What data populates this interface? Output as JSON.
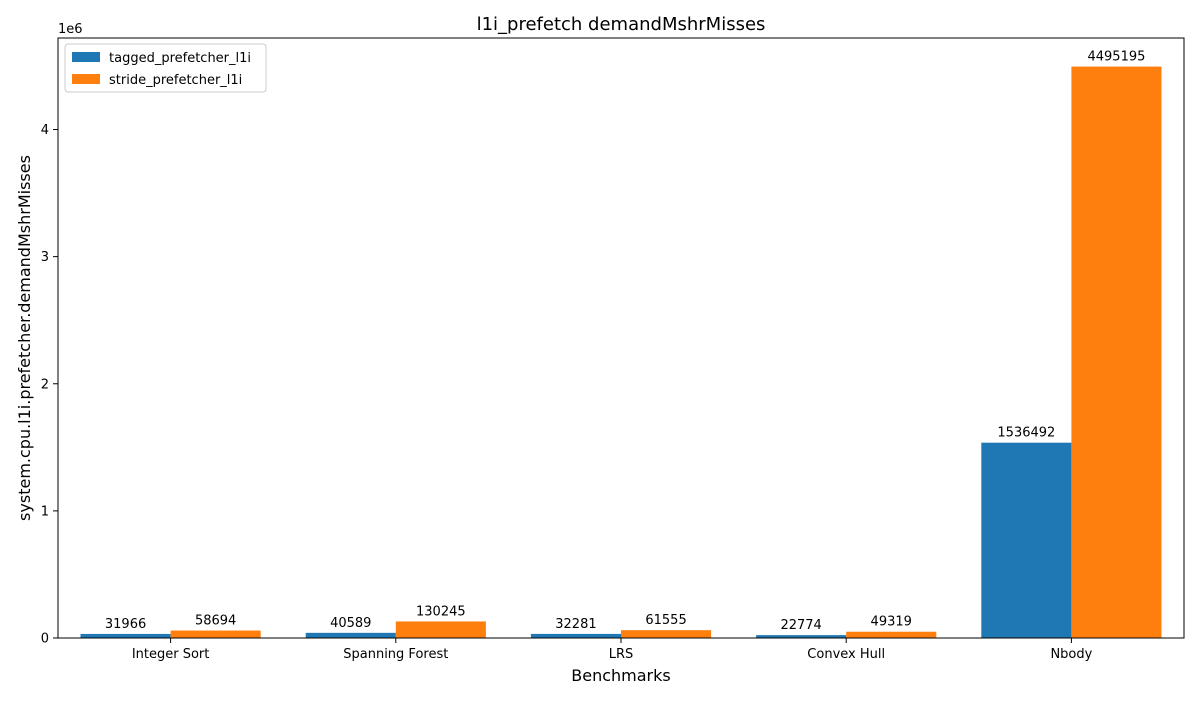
{
  "chart_data": {
    "type": "bar",
    "title": "l1i_prefetch demandMshrMisses",
    "xlabel": "Benchmarks",
    "ylabel": "system.cpu.l1i.prefetcher.demandMshrMisses",
    "y_scale_label": "1e6",
    "ylim": [
      0,
      4720000
    ],
    "y_ticks": [
      0,
      1000000,
      2000000,
      3000000,
      4000000
    ],
    "y_tick_labels": [
      "0",
      "1",
      "2",
      "3",
      "4"
    ],
    "categories": [
      "Integer Sort",
      "Spanning Forest",
      "LRS",
      "Convex Hull",
      "Nbody"
    ],
    "series": [
      {
        "name": "tagged_prefetcher_l1i",
        "color": "#1f77b4",
        "values": [
          31966,
          40589,
          32281,
          22774,
          1536492
        ]
      },
      {
        "name": "stride_prefetcher_l1i",
        "color": "#ff7f0e",
        "values": [
          58694,
          130245,
          61555,
          49319,
          4495195
        ]
      }
    ],
    "legend_position": "top-left",
    "grid": false
  }
}
